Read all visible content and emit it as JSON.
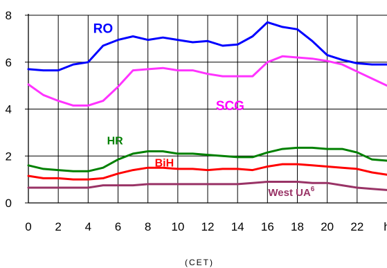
{
  "chart_data": {
    "type": "line",
    "xlabel": "(CET)",
    "x_ticks": [
      "0",
      "2",
      "4",
      "6",
      "8",
      "10",
      "12",
      "14",
      "16",
      "18",
      "20",
      "22",
      "h"
    ],
    "x_tick_positions": [
      0,
      2,
      4,
      6,
      8,
      10,
      12,
      14,
      16,
      18,
      20,
      22,
      24
    ],
    "xlim": [
      0,
      24
    ],
    "y_ticks": [
      "0",
      "2",
      "4",
      "6",
      "8"
    ],
    "ylim": [
      0,
      8
    ],
    "grid": true,
    "x": [
      0,
      1,
      2,
      3,
      4,
      5,
      6,
      7,
      8,
      9,
      10,
      11,
      12,
      13,
      14,
      15,
      16,
      17,
      18,
      19,
      20,
      21,
      22,
      23,
      24
    ],
    "series": [
      {
        "name": "RO",
        "label_sup": "",
        "color": "#0000ff",
        "label_color": "#0000ff",
        "values": [
          5.7,
          5.65,
          5.65,
          5.9,
          6.0,
          6.7,
          6.95,
          7.1,
          6.95,
          7.05,
          6.95,
          6.85,
          6.9,
          6.7,
          6.75,
          7.1,
          7.7,
          7.5,
          7.4,
          6.9,
          6.3,
          6.1,
          5.95,
          5.9,
          5.9
        ]
      },
      {
        "name": "SCG",
        "label_sup": "",
        "color": "#ff33ff",
        "label_color": "#ff00ff",
        "values": [
          5.05,
          4.6,
          4.35,
          4.15,
          4.15,
          4.35,
          4.95,
          5.65,
          5.7,
          5.75,
          5.65,
          5.65,
          5.5,
          5.4,
          5.4,
          5.4,
          6.0,
          6.25,
          6.2,
          6.15,
          6.05,
          5.9,
          5.6,
          5.3,
          5.0
        ]
      },
      {
        "name": "HR",
        "label_sup": "",
        "color": "#008000",
        "label_color": "#008000",
        "values": [
          1.6,
          1.45,
          1.4,
          1.35,
          1.35,
          1.5,
          1.85,
          2.1,
          2.2,
          2.2,
          2.1,
          2.1,
          2.05,
          2.0,
          1.95,
          1.95,
          2.15,
          2.3,
          2.35,
          2.35,
          2.3,
          2.3,
          2.15,
          1.85,
          1.8
        ]
      },
      {
        "name": "BiH",
        "label_sup": "",
        "color": "#ff0000",
        "label_color": "#ff0000",
        "values": [
          1.15,
          1.05,
          1.05,
          1.0,
          1.0,
          1.05,
          1.25,
          1.4,
          1.5,
          1.5,
          1.45,
          1.45,
          1.4,
          1.45,
          1.45,
          1.4,
          1.55,
          1.65,
          1.65,
          1.6,
          1.55,
          1.5,
          1.45,
          1.3,
          1.2
        ]
      },
      {
        "name": "West UA",
        "label_sup": "6",
        "color": "#993366",
        "label_color": "#993366",
        "values": [
          0.65,
          0.65,
          0.65,
          0.65,
          0.65,
          0.75,
          0.75,
          0.75,
          0.8,
          0.8,
          0.8,
          0.8,
          0.8,
          0.8,
          0.8,
          0.85,
          0.9,
          0.9,
          0.9,
          0.85,
          0.85,
          0.75,
          0.65,
          0.6,
          0.55
        ]
      }
    ]
  }
}
